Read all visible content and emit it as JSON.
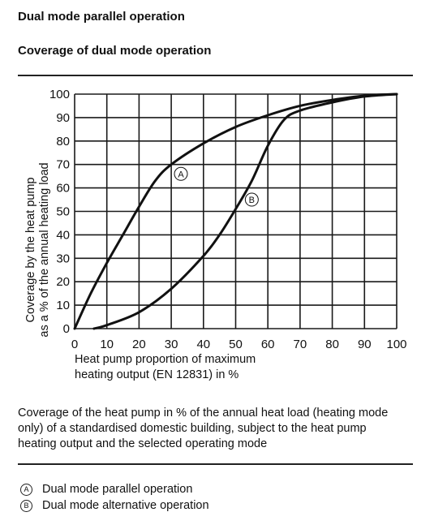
{
  "heading": "Dual mode parallel operation",
  "subheading": "Coverage of dual mode operation",
  "caption": "Coverage of the heat pump in % of the annual heat load (heating mode only) of a standardised domestic building, subject to the heat pump heating output and the selected operating mode",
  "legend": [
    {
      "marker": "A",
      "label": "Dual mode parallel operation"
    },
    {
      "marker": "B",
      "label": "Dual mode alternative operation"
    }
  ],
  "chart_data": {
    "type": "line",
    "xlabel_line1": "Heat pump proportion of maximum",
    "xlabel_line2": "heating output (EN 12831) in %",
    "ylabel_line1": "Coverage by the heat pump",
    "ylabel_line2": "as a % of the annual heating load",
    "xlim": [
      0,
      100
    ],
    "ylim": [
      0,
      100
    ],
    "xticks": [
      0,
      10,
      20,
      30,
      40,
      50,
      60,
      70,
      80,
      90,
      100
    ],
    "yticks": [
      0,
      10,
      20,
      30,
      40,
      50,
      60,
      70,
      80,
      90,
      100
    ],
    "grid": true,
    "series": [
      {
        "name": "A",
        "x": [
          0,
          5,
          10,
          15,
          20,
          25,
          30,
          40,
          50,
          60,
          70,
          80,
          90,
          100
        ],
        "y": [
          0,
          15,
          28,
          40,
          52,
          63,
          70,
          79,
          86,
          91,
          95,
          97.5,
          99.3,
          100
        ],
        "label_at": [
          33,
          66
        ]
      },
      {
        "name": "B",
        "x": [
          6,
          10,
          20,
          30,
          40,
          45,
          50,
          55,
          60,
          65,
          70,
          80,
          90,
          100
        ],
        "y": [
          0,
          1.5,
          7,
          17,
          31,
          40,
          51,
          63,
          78,
          89,
          93,
          96.5,
          99,
          100
        ],
        "label_at": [
          55,
          55
        ]
      }
    ]
  }
}
